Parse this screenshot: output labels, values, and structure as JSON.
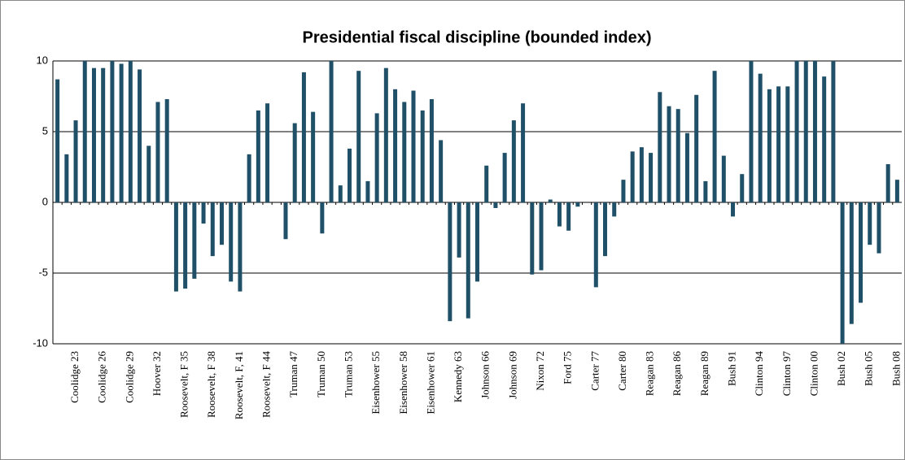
{
  "chart_data": {
    "type": "bar",
    "title": "Presidential fiscal discipline (bounded index)",
    "categories": [
      null,
      null,
      "Coolidge 23",
      null,
      null,
      "Coolidge 26",
      null,
      null,
      "Coolidge 29",
      null,
      null,
      "Hoover 32",
      null,
      null,
      "Roosevelt, F 35",
      null,
      null,
      "Roosevelt, F 38",
      null,
      null,
      "Roosevelt, F, 41",
      null,
      null,
      "Roosevelt, F 44",
      null,
      null,
      "Truman 47",
      null,
      null,
      "Truman 50",
      null,
      null,
      "Truman 53",
      null,
      null,
      "Eisenhower 55",
      null,
      null,
      "Eisenhower 58",
      null,
      null,
      "Eisenhower 61",
      null,
      null,
      "Kennedy 63",
      null,
      null,
      "Johnson 66",
      null,
      null,
      "Johnson 69",
      null,
      null,
      "Nixon 72",
      null,
      null,
      "Ford 75",
      null,
      null,
      "Carter 77",
      null,
      null,
      "Carter 80",
      null,
      null,
      "Reagan 83",
      null,
      null,
      "Reagan 86",
      null,
      null,
      "Reagan 89",
      null,
      null,
      "Bush 91",
      null,
      null,
      "Clinton 94",
      null,
      null,
      "Clinton 97",
      null,
      null,
      "Clinton 00",
      null,
      null,
      "Bush 02",
      null,
      null,
      "Bush 05",
      null,
      null,
      "Bush 08"
    ],
    "values": [
      8.7,
      3.4,
      5.8,
      10,
      9.5,
      9.5,
      10,
      9.8,
      10,
      9.4,
      4.0,
      7.1,
      7.3,
      -6.3,
      -6.1,
      -5.4,
      -1.5,
      -3.8,
      -3.0,
      -5.6,
      -6.3,
      3.4,
      6.5,
      7.0,
      0,
      -2.6,
      5.6,
      9.2,
      6.4,
      -2.2,
      10,
      1.2,
      3.8,
      9.3,
      1.5,
      6.3,
      9.5,
      8.0,
      7.1,
      7.9,
      6.5,
      7.3,
      4.4,
      -8.4,
      -3.9,
      -8.2,
      -5.6,
      2.6,
      -0.4,
      3.5,
      5.8,
      7.0,
      -5.1,
      -4.8,
      0.2,
      -1.7,
      -2.0,
      -0.3,
      0,
      -6.0,
      -3.8,
      -1.0,
      1.6,
      3.6,
      3.9,
      3.5,
      7.8,
      6.8,
      6.6,
      4.9,
      7.6,
      1.5,
      9.3,
      3.3,
      -1.0,
      2.0,
      10,
      9.1,
      8.0,
      8.2,
      8.2,
      10,
      10,
      10,
      8.9,
      10,
      -10,
      -8.6,
      -7.1,
      -3.0,
      -3.6,
      2.7,
      1.6
    ],
    "color": "#1f5068",
    "ylim": [
      -10,
      10
    ],
    "yticks": [
      -10,
      -5,
      0,
      5,
      10
    ],
    "grid": true
  }
}
